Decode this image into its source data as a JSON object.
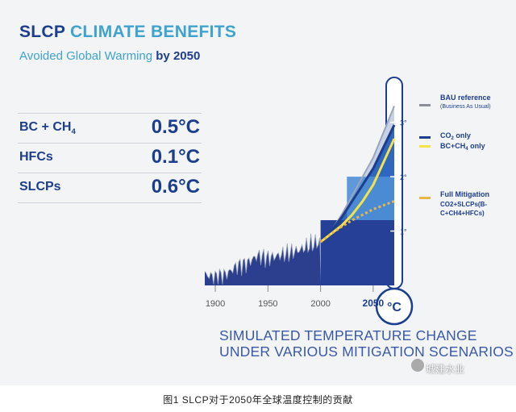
{
  "header": {
    "title_part1": "SLCP",
    "title_part2": "CLIMATE BENEFITS",
    "subtitle_part1": "Avoided Global Warming",
    "subtitle_part2": "by 2050"
  },
  "metrics": [
    {
      "name": "BC + CH",
      "sub": "4",
      "value": "0.5°C"
    },
    {
      "name": "HFCs",
      "sub": "",
      "value": "0.1°C"
    },
    {
      "name": "SLCPs",
      "sub": "",
      "value": "0.6°C"
    }
  ],
  "footer": {
    "line1": "SIMULATED TEMPERATURE CHANGE",
    "line2": "UNDER VARIOUS MITIGATION SCENARIOS"
  },
  "watermark": "城建水业",
  "caption": "图1 SLCP对于2050年全球温度控制的贡献",
  "chart_data": {
    "type": "area",
    "x_ticks": [
      "1900",
      "1950",
      "2000",
      "2050"
    ],
    "thermometer_unit": "°C",
    "thermometer_ticks": [
      "1°",
      "2°",
      "3°"
    ],
    "xlim": [
      1890,
      2070
    ],
    "ylim": [
      0,
      3.5
    ],
    "series": [
      {
        "name": "BAU reference",
        "note": "(Business As Usual)",
        "color": "#8a8f99",
        "x": [
          2000,
          2010,
          2020,
          2030,
          2040,
          2050,
          2070
        ],
        "y": [
          0.8,
          1.0,
          1.3,
          1.65,
          2.0,
          2.35,
          3.3
        ]
      },
      {
        "name": "CO",
        "name_sub": "2",
        "name_rest": " only",
        "color": "#1d3e8c",
        "x": [
          2000,
          2010,
          2020,
          2030,
          2040,
          2050,
          2070
        ],
        "y": [
          0.8,
          1.0,
          1.25,
          1.55,
          1.85,
          2.15,
          2.95
        ]
      },
      {
        "name": "BC+CH",
        "name_sub": "4",
        "name_rest": " only",
        "color": "#f2e24b",
        "x": [
          2000,
          2010,
          2020,
          2030,
          2040,
          2050,
          2070
        ],
        "y": [
          0.8,
          0.95,
          1.1,
          1.3,
          1.55,
          1.85,
          2.7
        ]
      },
      {
        "name": "Full Mitigation",
        "lines": [
          "CO2+SLCPs(B-",
          "C+CH4+HFCs)"
        ],
        "color": "#e9b64a",
        "x": [
          2000,
          2010,
          2020,
          2030,
          2040,
          2050,
          2070
        ],
        "y": [
          0.8,
          0.95,
          1.08,
          1.2,
          1.3,
          1.4,
          1.55
        ]
      }
    ],
    "observed": {
      "x": [
        1890,
        1900,
        1910,
        1920,
        1930,
        1940,
        1950,
        1960,
        1970,
        1980,
        1990,
        2000
      ],
      "y": [
        0.2,
        0.15,
        0.2,
        0.35,
        0.4,
        0.55,
        0.5,
        0.55,
        0.6,
        0.65,
        0.75,
        0.8
      ]
    }
  }
}
